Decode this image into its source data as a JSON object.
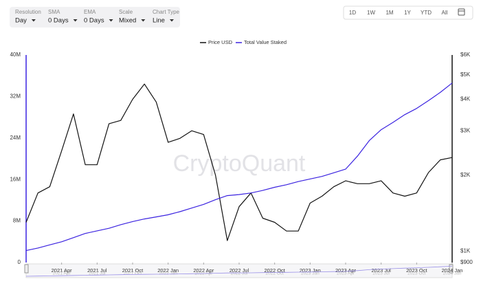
{
  "toolbar": {
    "controls": [
      {
        "label": "Resolution",
        "value": "Day"
      },
      {
        "label": "SMA",
        "value": "0 Days"
      },
      {
        "label": "EMA",
        "value": "0 Days"
      },
      {
        "label": "Scale",
        "value": "Mixed"
      },
      {
        "label": "Chart Type",
        "value": "Line"
      }
    ],
    "range_buttons": [
      "1D",
      "1W",
      "1M",
      "1Y",
      "YTD",
      "All"
    ]
  },
  "chart_data": {
    "type": "line",
    "watermark": "CryptoQuant",
    "x": [
      "2021-01",
      "2021-02",
      "2021-03",
      "2021-04",
      "2021-05",
      "2021-06",
      "2021-07",
      "2021-08",
      "2021-09",
      "2021-10",
      "2021-11",
      "2021-12",
      "2022-01",
      "2022-02",
      "2022-03",
      "2022-04",
      "2022-05",
      "2022-06",
      "2022-07",
      "2022-08",
      "2022-09",
      "2022-10",
      "2022-11",
      "2022-12",
      "2023-01",
      "2023-02",
      "2023-03",
      "2023-04",
      "2023-05",
      "2023-06",
      "2023-07",
      "2023-08",
      "2023-09",
      "2023-10",
      "2023-11",
      "2023-12",
      "2024-01"
    ],
    "xlim": [
      "2021-01",
      "2024-01"
    ],
    "xticks": [
      {
        "value": "2021-04",
        "label": "2021 Apr"
      },
      {
        "value": "2021-07",
        "label": "2021 Jul"
      },
      {
        "value": "2021-10",
        "label": "2021 Oct"
      },
      {
        "value": "2022-01",
        "label": "2022 Jan"
      },
      {
        "value": "2022-04",
        "label": "2022 Apr"
      },
      {
        "value": "2022-07",
        "label": "2022 Jul"
      },
      {
        "value": "2022-10",
        "label": "2022 Oct"
      },
      {
        "value": "2023-01",
        "label": "2023 Jan"
      },
      {
        "value": "2023-04",
        "label": "2023 Apr"
      },
      {
        "value": "2023-07",
        "label": "2023 Jul"
      },
      {
        "value": "2023-10",
        "label": "2023 Oct"
      },
      {
        "value": "2024-01",
        "label": "2024 Jan"
      }
    ],
    "ylim": [
      0,
      40000000
    ],
    "yticks": [
      0,
      {
        "value": 8000000,
        "label": "8M"
      },
      {
        "value": 16000000,
        "label": "16M"
      },
      {
        "value": 24000000,
        "label": "24M"
      },
      {
        "value": 32000000,
        "label": "32M"
      },
      {
        "value": 40000000,
        "label": "40M"
      }
    ],
    "y2lim": [
      900,
      6000
    ],
    "y2log": true,
    "y2ticks": [
      {
        "value": 900,
        "label": "$900"
      },
      {
        "value": 1000,
        "label": "$1K"
      },
      {
        "value": 2000,
        "label": "$2K"
      },
      {
        "value": 3000,
        "label": "$3K"
      },
      {
        "value": 4000,
        "label": "$4K"
      },
      {
        "value": 5000,
        "label": "$5K"
      },
      {
        "value": 6000,
        "label": "$6K"
      }
    ],
    "series": [
      {
        "name": "Price USD",
        "color": "#111111",
        "axis": "y2",
        "values": [
          1300,
          1700,
          1800,
          2500,
          3500,
          2200,
          2200,
          3200,
          3300,
          4000,
          4600,
          3900,
          2700,
          2800,
          3000,
          2900,
          2000,
          1100,
          1500,
          1700,
          1350,
          1300,
          1200,
          1200,
          1550,
          1650,
          1800,
          1900,
          1850,
          1850,
          1900,
          1700,
          1650,
          1700,
          2050,
          2300,
          2350
        ]
      },
      {
        "name": "Total Value Staked",
        "color": "#3a22e0",
        "values": [
          2300000,
          2800000,
          3400000,
          4000000,
          4800000,
          5600000,
          6100000,
          6600000,
          7300000,
          7900000,
          8400000,
          8800000,
          9200000,
          9800000,
          10500000,
          11200000,
          12100000,
          12900000,
          13100000,
          13400000,
          13900000,
          14500000,
          15000000,
          15600000,
          16100000,
          16600000,
          17300000,
          18000000,
          20500000,
          23500000,
          25600000,
          27000000,
          28500000,
          29700000,
          31200000,
          32800000,
          34600000
        ]
      }
    ]
  }
}
